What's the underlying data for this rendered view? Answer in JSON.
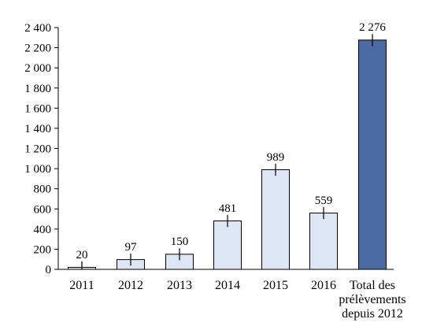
{
  "chart_data": {
    "type": "bar",
    "categories": [
      "2011",
      "2012",
      "2013",
      "2014",
      "2015",
      "2016",
      "Total des prélèvements depuis 2012"
    ],
    "category_lines": [
      [
        "2011"
      ],
      [
        "2012"
      ],
      [
        "2013"
      ],
      [
        "2014"
      ],
      [
        "2015"
      ],
      [
        "2016"
      ],
      [
        "Total des",
        "prélèvements",
        "depuis 2012"
      ]
    ],
    "values": [
      20,
      97,
      150,
      481,
      989,
      559,
      2276
    ],
    "data_labels": [
      "20",
      "97",
      "150",
      "481",
      "989",
      "559",
      "2 276"
    ],
    "yticks": [
      0,
      200,
      400,
      600,
      800,
      1000,
      1200,
      1400,
      1600,
      1800,
      2000,
      2200,
      2400
    ],
    "ytick_labels": [
      "0",
      "200",
      "400",
      "600",
      "800",
      "1 000",
      "1 200",
      "1 400",
      "1 600",
      "1 800",
      "2 000",
      "2 200",
      "2 400"
    ],
    "ylim": [
      0,
      2400
    ],
    "error_bar_halfwidth": 60,
    "grid": false,
    "title": "",
    "xlabel": "",
    "ylabel": "",
    "colors": {
      "bar_light": "#dde6f4",
      "bar_total": "#4a6aa3",
      "axis": "#000000"
    }
  }
}
